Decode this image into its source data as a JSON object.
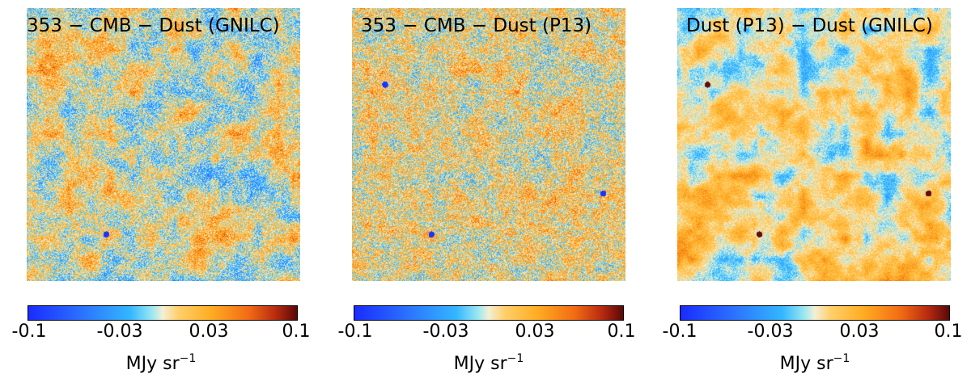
{
  "colorbar_colors": [
    "#1a2bff",
    "#34b7ff",
    "#f3efd6",
    "#ffad22",
    "#b92b10",
    "#5a0808"
  ],
  "panels": [
    {
      "title": "353 − CMB − Dust (GNILC)",
      "ticks": [
        "-0.1",
        "-0.03",
        "0.03",
        "0.1"
      ],
      "unit_base": "MJy sr",
      "unit_exp": "−1"
    },
    {
      "title": "353 − CMB − Dust (P13)",
      "ticks": [
        "-0.1",
        "-0.03",
        "0.03",
        "0.1"
      ],
      "unit_base": "MJy sr",
      "unit_exp": "−1"
    },
    {
      "title": "Dust (P13) − Dust (GNILC)",
      "ticks": [
        "-0.1",
        "-0.03",
        "0.03",
        "0.1"
      ],
      "unit_base": "MJy sr",
      "unit_exp": "−1"
    }
  ]
}
